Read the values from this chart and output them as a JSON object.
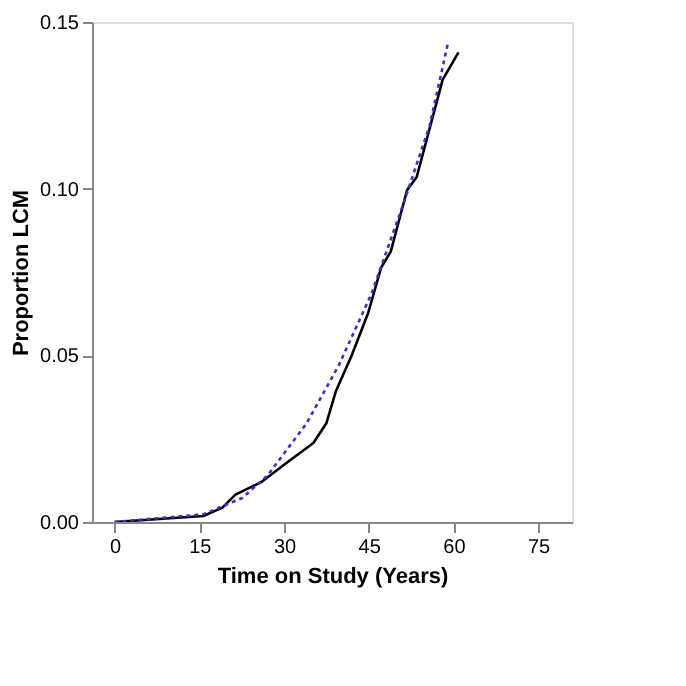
{
  "chart_data": {
    "type": "line",
    "xlabel": "Time on Study (Years)",
    "ylabel": "Proportion LCM",
    "xlim": [
      -4,
      81
    ],
    "xticks": [
      0,
      15,
      30,
      45,
      60,
      75
    ],
    "ylim": [
      0,
      0.15
    ],
    "yticks": [
      {
        "value": 0,
        "label": "0.00"
      },
      {
        "value": 0.05,
        "label": "0.05"
      },
      {
        "value": 0.1,
        "label": "0.10"
      },
      {
        "value": 0.15,
        "label": "0.15"
      }
    ],
    "grid": false,
    "series": [
      {
        "color": "#000000",
        "line_style": "solid",
        "x": [
          0,
          15.7,
          19.1,
          21.4,
          26,
          30.6,
          35.2,
          37.5,
          39.2,
          42,
          44.9,
          47.2,
          48.9,
          51.8,
          53.5,
          58.1,
          60.9
        ],
        "values": [
          0,
          0.0018,
          0.0043,
          0.0082,
          0.012,
          0.0179,
          0.0237,
          0.0296,
          0.0393,
          0.05,
          0.0627,
          0.0763,
          0.0811,
          0.0996,
          0.1035,
          0.1327,
          0.1409
        ]
      },
      {
        "color": "#3333cc",
        "line_style": "dotted",
        "x": [
          0,
          15.7,
          22.6,
          27.1,
          34,
          39.7,
          45.5,
          51.2,
          55.8,
          59
        ],
        "values": [
          0,
          0.0023,
          0.0072,
          0.014,
          0.0296,
          0.047,
          0.0685,
          0.0957,
          0.119,
          0.1434
        ]
      }
    ]
  }
}
